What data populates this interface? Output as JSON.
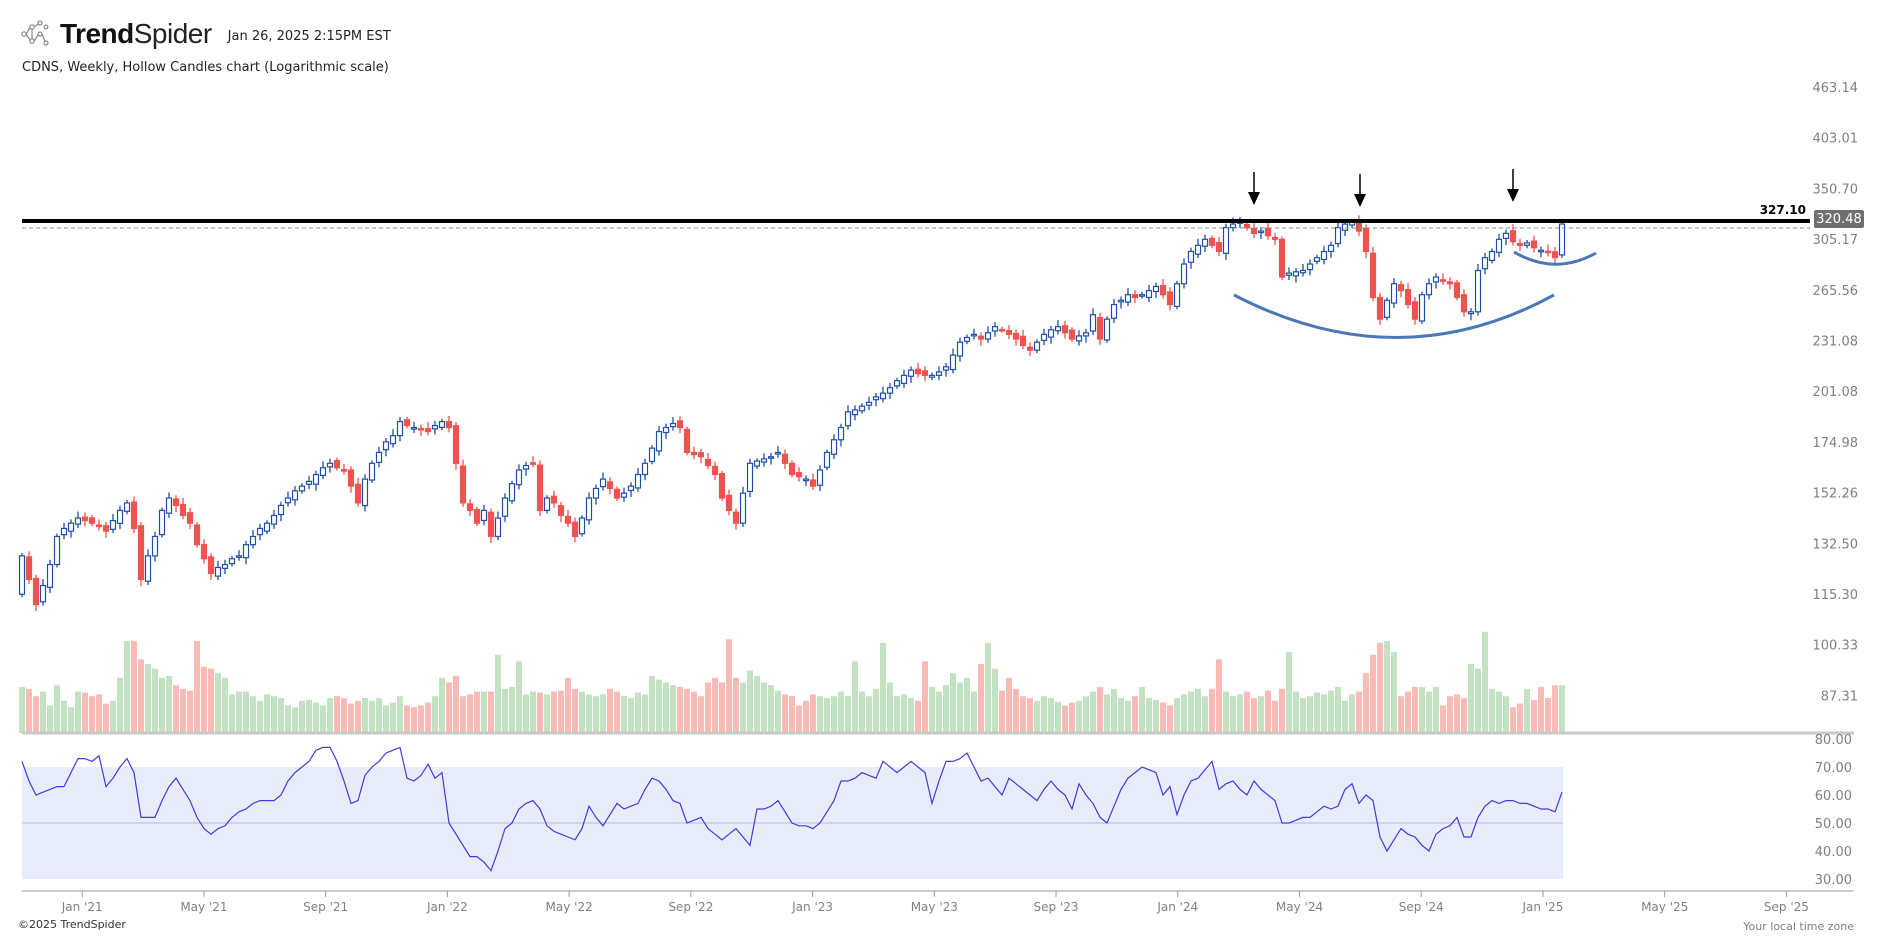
{
  "header": {
    "brand_bold": "Trend",
    "brand_light": "Spider",
    "timestamp": "Jan 26, 2025 2:15PM EST",
    "subtitle": "CDNS, Weekly, Hollow Candles chart (Logarithmic scale)"
  },
  "footer": {
    "copyright": "©2025 TrendSpider",
    "timezone_note": "Your local time zone"
  },
  "colors": {
    "up_candle": "#1f4fa8",
    "down_candle": "#ef5350",
    "volume_up": "#c3e2c2",
    "volume_down": "#fbbab6",
    "rsi_line": "#3d3de0",
    "rsi_band": "#e9ecfa",
    "resistance_line": "#000000",
    "arc": "#4a78b5"
  },
  "chart_data": {
    "type": "candlestick",
    "symbol": "CDNS",
    "interval": "Weekly",
    "scale": "log",
    "grid": false,
    "price_axis": {
      "ticks": [
        "463.14",
        "403.01",
        "350.70",
        "305.17",
        "265.56",
        "231.08",
        "201.08",
        "174.98",
        "152.26",
        "132.50",
        "115.30",
        "100.33",
        "87.31"
      ],
      "ylim": [
        80,
        463.14
      ]
    },
    "time_axis": {
      "ticks": [
        "Jan '21",
        "May '21",
        "Sep '21",
        "Jan '22",
        "May '22",
        "Sep '22",
        "Jan '23",
        "May '23",
        "Sep '23",
        "Jan '24",
        "May '24",
        "Sep '24",
        "Jan '25",
        "May '25",
        "Sep '25"
      ]
    },
    "close": [
      128,
      120,
      112,
      118,
      125,
      135,
      138,
      140,
      142,
      141,
      140,
      139,
      137,
      141,
      145,
      148,
      138,
      120,
      128,
      135,
      145,
      150,
      147,
      143,
      140,
      132,
      127,
      122,
      124,
      125,
      127,
      128,
      132,
      135,
      138,
      140,
      143,
      147,
      150,
      153,
      155,
      157,
      160,
      163,
      165,
      163,
      162,
      155,
      148,
      158,
      165,
      170,
      175,
      178,
      185,
      183,
      182,
      181,
      180,
      183,
      185,
      182,
      165,
      148,
      145,
      140,
      145,
      135,
      142,
      150,
      156,
      162,
      164,
      165,
      145,
      150,
      148,
      143,
      140,
      135,
      142,
      150,
      154,
      158,
      154,
      150,
      152,
      155,
      160,
      165,
      172,
      180,
      182,
      184,
      182,
      170,
      169,
      168,
      164,
      160,
      150,
      145,
      140,
      152,
      165,
      166,
      167,
      168,
      170,
      165,
      160,
      159,
      158,
      155,
      162,
      170,
      176,
      182,
      190,
      191,
      193,
      195,
      198,
      200,
      203,
      207,
      210,
      213,
      211,
      210,
      210,
      212,
      215,
      222,
      230,
      233,
      235,
      232,
      236,
      240,
      238,
      235,
      232,
      228,
      225,
      230,
      235,
      238,
      240,
      236,
      232,
      234,
      236,
      248,
      232,
      245,
      255,
      258,
      262,
      260,
      262,
      265,
      268,
      262,
      255,
      270,
      285,
      295,
      300,
      305,
      300,
      295,
      315,
      318,
      320,
      315,
      310,
      312,
      308,
      305,
      275,
      278,
      279,
      280,
      285,
      290,
      295,
      300,
      315,
      318,
      320,
      312,
      295,
      260,
      245,
      258,
      270,
      265,
      255,
      245,
      262,
      270,
      275,
      272,
      270,
      260,
      250,
      250,
      280,
      290,
      295,
      305,
      310,
      303,
      300,
      302,
      298,
      296,
      294,
      290,
      318
    ],
    "volume_relative": [
      50,
      48,
      40,
      45,
      30,
      52,
      35,
      28,
      45,
      44,
      40,
      42,
      32,
      35,
      60,
      100,
      100,
      80,
      75,
      70,
      60,
      62,
      52,
      48,
      46,
      100,
      72,
      70,
      65,
      60,
      42,
      45,
      45,
      40,
      35,
      42,
      40,
      38,
      30,
      28,
      35,
      36,
      33,
      30,
      38,
      40,
      38,
      32,
      35,
      38,
      35,
      38,
      30,
      33,
      40,
      30,
      28,
      30,
      33,
      40,
      60,
      55,
      62,
      40,
      42,
      45,
      45,
      45,
      85,
      48,
      50,
      78,
      42,
      45,
      44,
      42,
      45,
      46,
      60,
      48,
      45,
      42,
      40,
      42,
      48,
      45,
      40,
      38,
      44,
      42,
      62,
      58,
      55,
      52,
      50,
      48,
      45,
      40,
      55,
      60,
      55,
      102,
      60,
      55,
      68,
      62,
      55,
      52,
      46,
      42,
      40,
      30,
      35,
      42,
      40,
      38,
      40,
      45,
      40,
      78,
      45,
      40,
      48,
      98,
      55,
      40,
      42,
      38,
      35,
      78,
      50,
      45,
      52,
      65,
      55,
      60,
      45,
      75,
      98,
      70,
      46,
      60,
      48,
      40,
      38,
      35,
      40,
      38,
      34,
      30,
      33,
      35,
      40,
      45,
      50,
      42,
      48,
      38,
      35,
      40,
      50,
      38,
      36,
      33,
      30,
      38,
      42,
      45,
      48,
      40,
      48,
      80,
      45,
      40,
      42,
      45,
      38,
      40,
      46,
      35,
      48,
      88,
      45,
      38,
      40,
      44,
      42,
      46,
      50,
      35,
      42,
      45,
      65,
      85,
      98,
      100,
      88,
      40,
      45,
      50,
      50,
      45,
      50,
      30,
      40,
      42,
      38,
      75,
      70,
      110,
      48,
      45,
      40,
      28,
      32,
      48,
      36,
      50,
      38,
      52,
      52
    ],
    "rsi": {
      "ticks": [
        "80.00",
        "70.00",
        "60.00",
        "50.00",
        "40.00",
        "30.00"
      ],
      "band": [
        30,
        70
      ],
      "midline": 50,
      "values": [
        72,
        65,
        60,
        61,
        62,
        63,
        63,
        68,
        73,
        73,
        72,
        74,
        63,
        66,
        70,
        73,
        68,
        52,
        52,
        52,
        58,
        63,
        66,
        62,
        58,
        52,
        48,
        46,
        48,
        49,
        52,
        54,
        55,
        57,
        58,
        58,
        58,
        60,
        65,
        68,
        70,
        72,
        76,
        77,
        77,
        72,
        65,
        57,
        58,
        67,
        70,
        72,
        75,
        76,
        77,
        66,
        65,
        67,
        71,
        66,
        68,
        50,
        46,
        42,
        38,
        38,
        36,
        33,
        40,
        48,
        50,
        55,
        57,
        58,
        55,
        49,
        47,
        46,
        45,
        44,
        48,
        56,
        52,
        49,
        53,
        57,
        55,
        56,
        57,
        62,
        66,
        65,
        62,
        58,
        57,
        50,
        51,
        52,
        48,
        46,
        44,
        46,
        48,
        45,
        42,
        55,
        55,
        56,
        58,
        54,
        50,
        49,
        49,
        48,
        50,
        54,
        58,
        65,
        65,
        66,
        68,
        67,
        66,
        72,
        70,
        68,
        70,
        72,
        70,
        68,
        57,
        65,
        72,
        72,
        73,
        75,
        70,
        65,
        66,
        63,
        60,
        66,
        64,
        62,
        60,
        58,
        62,
        65,
        62,
        60,
        55,
        64,
        60,
        57,
        52,
        50,
        56,
        62,
        66,
        68,
        70,
        69,
        68,
        60,
        63,
        53,
        60,
        65,
        66,
        69,
        72,
        62,
        64,
        65,
        62,
        60,
        65,
        62,
        60,
        58,
        50,
        50,
        51,
        52,
        52,
        54,
        56,
        55,
        56,
        62,
        64,
        57,
        60,
        58,
        45,
        40,
        44,
        48,
        46,
        45,
        42,
        40,
        46,
        48,
        49,
        52,
        45,
        45,
        52,
        56,
        58,
        57,
        58,
        58,
        57,
        57,
        56,
        55,
        55,
        54,
        61
      ]
    },
    "annotations": {
      "resistance_level": "327.10",
      "last_price": "320.48",
      "arrow_count": 3
    }
  }
}
